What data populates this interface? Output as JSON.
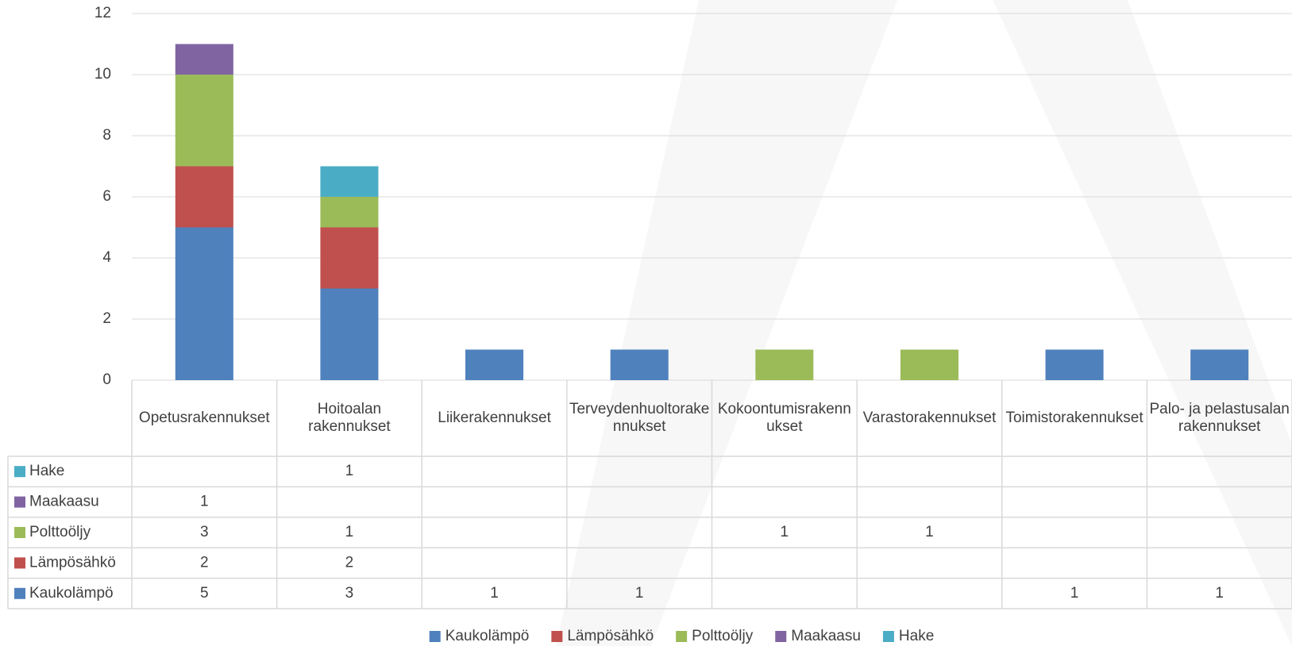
{
  "chart_data": {
    "type": "bar",
    "stacked": true,
    "categories": [
      "Opetusrakennukset",
      "Hoitoalan rakennukset",
      "Liikerakennukset",
      "Terveydenhuoltorakennukset",
      "Kokoontumisrakennukset",
      "Varastorakennukset",
      "Toimistorakennukset",
      "Palo- ja pelastusalan rakennukset"
    ],
    "series": [
      {
        "name": "Kaukolämpö",
        "color": "#4f81bd",
        "values": [
          5,
          3,
          1,
          1,
          null,
          null,
          1,
          1
        ]
      },
      {
        "name": "Lämpösähkö",
        "color": "#c0504d",
        "values": [
          2,
          2,
          null,
          null,
          null,
          null,
          null,
          null
        ]
      },
      {
        "name": "Polttoöljy",
        "color": "#9bbb59",
        "values": [
          3,
          1,
          null,
          null,
          1,
          1,
          null,
          null
        ]
      },
      {
        "name": "Maakaasu",
        "color": "#8064a2",
        "values": [
          1,
          null,
          null,
          null,
          null,
          null,
          null,
          null
        ]
      },
      {
        "name": "Hake",
        "color": "#4bacc6",
        "values": [
          null,
          1,
          null,
          null,
          null,
          null,
          null,
          null
        ]
      }
    ],
    "ylim": [
      0,
      12
    ],
    "yticks": [
      0,
      2,
      4,
      6,
      8,
      10,
      12
    ],
    "grid": true,
    "data_table": true,
    "legend": "bottom"
  }
}
